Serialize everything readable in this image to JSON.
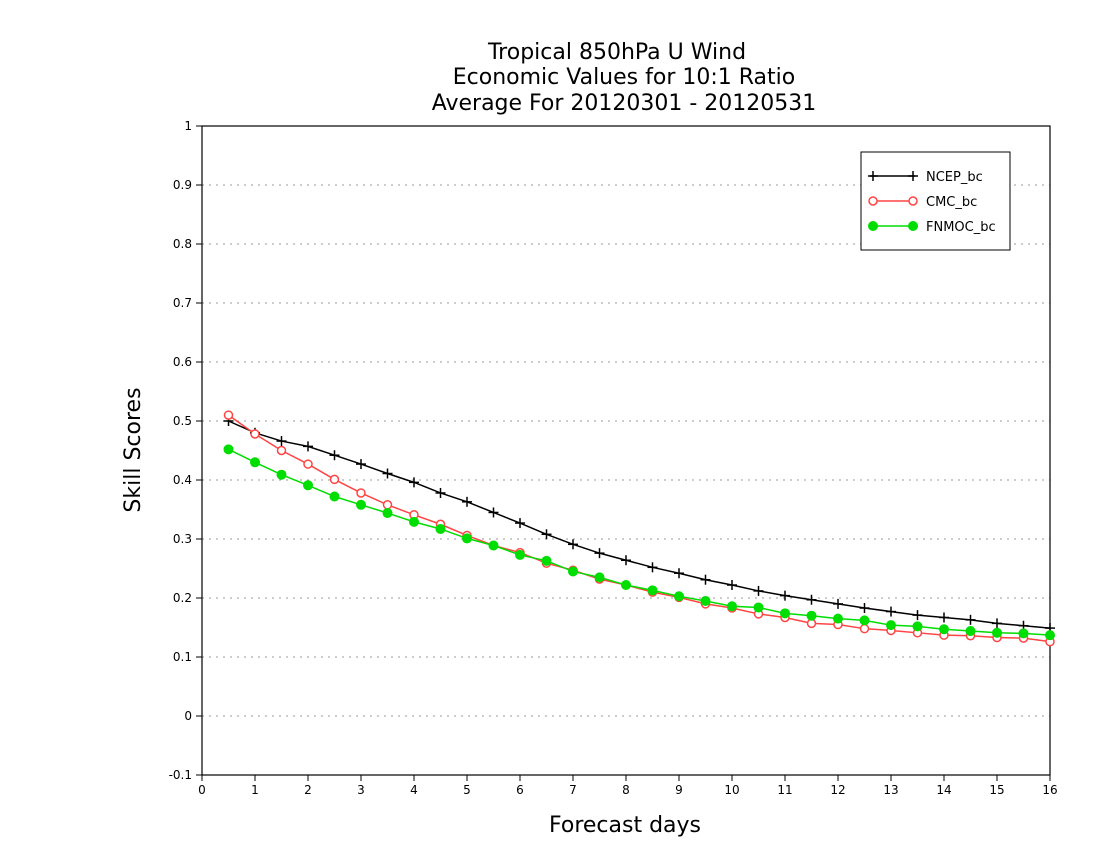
{
  "chart_data": {
    "type": "line",
    "title_lines": [
      "Tropical 850hPa U Wind",
      "Economic Values for 10:1 Ratio",
      "Average For 20120301 - 20120531"
    ],
    "xlabel": "Forecast days",
    "ylabel": "Skill Scores",
    "xlim": [
      0,
      16
    ],
    "ylim": [
      -0.1,
      1
    ],
    "xticks": [
      0,
      1,
      2,
      3,
      4,
      5,
      6,
      7,
      8,
      9,
      10,
      11,
      12,
      13,
      14,
      15,
      16
    ],
    "yticks": [
      -0.1,
      0,
      0.1,
      0.2,
      0.3,
      0.4,
      0.5,
      0.6,
      0.7,
      0.8,
      0.9,
      1
    ],
    "ytick_labels": [
      "-0.1",
      "0",
      "0.1",
      "0.2",
      "0.3",
      "0.4",
      "0.5",
      "0.6",
      "0.7",
      "0.8",
      "0.9",
      "1"
    ],
    "grid": "horizontal dotted",
    "legend_position": "top-right",
    "x": [
      0.5,
      1,
      1.5,
      2,
      2.5,
      3,
      3.5,
      4,
      4.5,
      5,
      5.5,
      6,
      6.5,
      7,
      7.5,
      8,
      8.5,
      9,
      9.5,
      10,
      10.5,
      11,
      11.5,
      12,
      12.5,
      13,
      13.5,
      14,
      14.5,
      15,
      15.5,
      16
    ],
    "series": [
      {
        "name": "NCEP_bc",
        "color": "#000000",
        "marker": "plus",
        "values": [
          0.5,
          0.48,
          0.466,
          0.457,
          0.442,
          0.427,
          0.411,
          0.396,
          0.378,
          0.363,
          0.345,
          0.327,
          0.308,
          0.291,
          0.276,
          0.264,
          0.252,
          0.242,
          0.231,
          0.222,
          0.212,
          0.204,
          0.197,
          0.19,
          0.183,
          0.177,
          0.171,
          0.167,
          0.163,
          0.157,
          0.153,
          0.149
        ]
      },
      {
        "name": "CMC_bc",
        "color": "#ff4444",
        "marker": "open-circle",
        "values": [
          0.51,
          0.478,
          0.45,
          0.427,
          0.401,
          0.378,
          0.358,
          0.341,
          0.325,
          0.306,
          0.289,
          0.277,
          0.259,
          0.247,
          0.232,
          0.222,
          0.21,
          0.201,
          0.19,
          0.183,
          0.173,
          0.167,
          0.157,
          0.155,
          0.148,
          0.145,
          0.141,
          0.137,
          0.136,
          0.133,
          0.132,
          0.126
        ]
      },
      {
        "name": "FNMOC_bc",
        "color": "#00dd00",
        "marker": "filled-circle",
        "values": [
          0.452,
          0.43,
          0.409,
          0.391,
          0.372,
          0.358,
          0.344,
          0.329,
          0.317,
          0.301,
          0.289,
          0.273,
          0.263,
          0.245,
          0.235,
          0.222,
          0.213,
          0.203,
          0.195,
          0.186,
          0.184,
          0.174,
          0.17,
          0.165,
          0.162,
          0.154,
          0.152,
          0.147,
          0.144,
          0.141,
          0.14,
          0.137
        ]
      }
    ]
  }
}
